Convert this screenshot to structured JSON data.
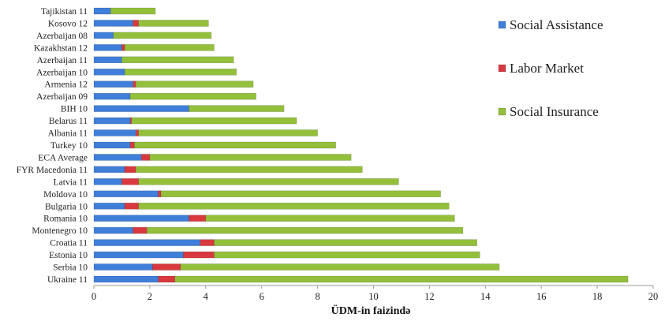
{
  "chart_data": {
    "type": "bar",
    "orientation": "horizontal",
    "stacked": true,
    "categories": [
      "Ukraine 11",
      "Serbia 10",
      "Estonia 10",
      "Croatia 11",
      "Montenegro 10",
      "Romania 10",
      "Bulgaria 10",
      "Moldova 10",
      "Latvia 11",
      "FYR Macedonia 11",
      "ECA Average",
      "Turkey 10",
      "Albania 11",
      "Belarus 11",
      "BIH 10",
      "Azerbaijan 09",
      "Armenia 12",
      "Azerbaijan 10",
      "Azerbaijan 11",
      "Kazakhstan 12",
      "Azerbaijan 08",
      "Kosovo 12",
      "Tajikistan 11"
    ],
    "series": [
      {
        "name": "Social Assistance",
        "color": "#3f7fd9",
        "values": [
          2.3,
          2.1,
          3.2,
          3.8,
          1.4,
          3.4,
          1.1,
          2.3,
          1.0,
          1.1,
          1.7,
          1.3,
          1.5,
          1.3,
          3.4,
          1.3,
          1.4,
          1.1,
          1.0,
          1.0,
          0.7,
          1.4,
          0.6
        ]
      },
      {
        "name": "Labor Market",
        "color": "#d8393f",
        "values": [
          0.6,
          1.0,
          1.1,
          0.5,
          0.5,
          0.6,
          0.5,
          0.1,
          0.6,
          0.4,
          0.3,
          0.15,
          0.1,
          0.05,
          0.0,
          0.0,
          0.1,
          0.0,
          0.0,
          0.1,
          0.0,
          0.2,
          0.0
        ]
      },
      {
        "name": "Social Insurance",
        "color": "#93bf3b",
        "values": [
          16.2,
          11.4,
          9.5,
          9.4,
          11.3,
          8.9,
          11.1,
          10.0,
          9.3,
          8.1,
          7.2,
          7.2,
          6.4,
          5.9,
          3.4,
          4.5,
          4.2,
          4.0,
          4.0,
          3.2,
          3.5,
          2.5,
          1.6
        ]
      }
    ],
    "xlabel": "ÜDM-in faizində",
    "xlim": [
      0,
      20
    ],
    "xticks": [
      0,
      2,
      4,
      6,
      8,
      10,
      12,
      14,
      16,
      18,
      20
    ],
    "grid": false,
    "legend_position": "right"
  }
}
